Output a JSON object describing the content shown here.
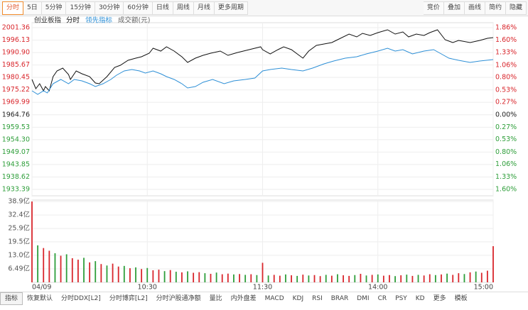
{
  "toolbar": {
    "left": [
      "分时",
      "5日",
      "5分钟",
      "15分钟",
      "30分钟",
      "60分钟",
      "日线",
      "周线",
      "月线",
      "更多周期"
    ],
    "right": [
      "竞价",
      "叠加",
      "画线",
      "简约",
      "隐藏"
    ]
  },
  "bottom_tabs": [
    "指标",
    "恢复默认",
    "分时DDX[L2]",
    "分时博弈[L2]",
    "分时沪股通净额",
    "量比",
    "内外盘差",
    "MACD",
    "KDJ",
    "RSI",
    "BRAR",
    "DMI",
    "CR",
    "PSY",
    "KD",
    "更多",
    "模板"
  ],
  "chart_data": [
    {
      "type": "line",
      "title": "创业板指",
      "xlim": [
        0,
        240
      ],
      "ylim": [
        1930.71,
        2003.45
      ],
      "y2lim": [
        -1.733,
        1.969
      ],
      "yticks": [
        2001.36,
        1996.13,
        {
          "value": 1990.9,
          "label": "1990.90"
        },
        1985.67,
        1980.45,
        1975.22,
        1969.99,
        1964.76,
        1959.53,
        {
          "value": 1954.3,
          "label": "1954.30"
        },
        1949.07,
        1943.85,
        1938.62,
        1933.39
      ],
      "y2ticks": [
        {
          "value": 1.86,
          "label": "1.86%"
        },
        {
          "value": 1.6,
          "label": "1.60%"
        },
        {
          "value": 1.33,
          "label": "1.33%"
        },
        {
          "value": 1.06,
          "label": "1.06%"
        },
        {
          "value": 0.8,
          "label": "0.80%"
        },
        {
          "value": 0.53,
          "label": "0.53%"
        },
        {
          "value": 0.27,
          "label": "0.27%"
        },
        {
          "value": 0,
          "label": "0.00%"
        },
        {
          "value": -0.27,
          "label": "0.27%"
        },
        {
          "value": -0.53,
          "label": "0.53%"
        },
        {
          "value": -0.8,
          "label": "0.80%"
        },
        {
          "value": -1.06,
          "label": "1.06%"
        },
        {
          "value": -1.33,
          "label": "1.33%"
        },
        {
          "value": -1.6,
          "label": "1.60%"
        }
      ],
      "up_color": "#d9262c",
      "down_color": "#2e9e3a",
      "grid": true,
      "series": [
        {
          "name": "分时",
          "color": "#111111",
          "x": [
            0,
            2,
            4,
            6,
            7,
            9,
            11,
            13,
            16,
            19,
            20,
            23,
            26,
            30,
            33,
            35,
            39,
            43,
            46,
            50,
            54,
            57,
            61,
            63,
            67,
            70,
            74,
            78,
            81,
            85,
            89,
            93,
            98,
            102,
            107,
            113,
            119,
            120,
            124,
            128,
            131,
            135,
            139,
            141,
            144,
            148,
            152,
            156,
            159,
            165,
            169,
            172,
            176,
            180,
            185,
            189,
            193,
            196,
            200,
            204,
            207,
            211,
            215,
            219,
            222,
            228,
            233,
            237,
            240
          ],
          "values": [
            1979.59,
            1975.72,
            1977.81,
            1974.82,
            1976.61,
            1974.82,
            1980.79,
            1983.17,
            1984.37,
            1981.68,
            1979.59,
            1983.17,
            1981.98,
            1980.79,
            1978.1,
            1977.81,
            1980.79,
            1984.66,
            1985.56,
            1987.65,
            1988.54,
            1989.14,
            1990.63,
            1992.71,
            1991.52,
            1993.31,
            1991.52,
            1989.14,
            1986.75,
            1988.54,
            1989.73,
            1990.63,
            1991.52,
            1989.73,
            1990.92,
            1992.12,
            1993.31,
            1992.12,
            1990.33,
            1992.12,
            1993.31,
            1992.12,
            1989.73,
            1988.54,
            1991.52,
            1993.91,
            1994.5,
            1995.1,
            1996.29,
            1998.68,
            1997.48,
            1998.97,
            1998.08,
            1999.27,
            2000.47,
            1998.68,
            1999.57,
            1997.48,
            1998.68,
            1998.08,
            1999.27,
            2000.47,
            1996.29,
            1995.1,
            1995.99,
            1995.1,
            1995.99,
            1996.89,
            1997.19
          ]
        },
        {
          "name": "领先指标",
          "color": "#2d8fd6",
          "x": [
            0,
            3,
            6,
            8,
            11,
            15,
            19,
            22,
            26,
            30,
            33,
            37,
            41,
            44,
            48,
            52,
            56,
            59,
            63,
            67,
            70,
            74,
            78,
            81,
            85,
            89,
            94,
            100,
            105,
            111,
            116,
            120,
            124,
            130,
            135,
            141,
            146,
            152,
            157,
            163,
            169,
            174,
            180,
            185,
            189,
            193,
            198,
            204,
            209,
            213,
            217,
            222,
            228,
            233,
            240
          ],
          "values": [
            1974.82,
            1973.33,
            1974.82,
            1973.93,
            1977.81,
            1979.59,
            1977.81,
            1979.59,
            1979,
            1977.81,
            1976.61,
            1977.81,
            1979.59,
            1981.38,
            1983.17,
            1983.77,
            1983.17,
            1982.28,
            1983.17,
            1981.98,
            1980.79,
            1979.59,
            1977.81,
            1976.02,
            1976.61,
            1978.4,
            1979.59,
            1977.81,
            1979,
            1979.59,
            1980.19,
            1983.17,
            1983.77,
            1984.37,
            1983.77,
            1983.17,
            1984.37,
            1986.15,
            1987.35,
            1988.54,
            1989.14,
            1990.33,
            1991.52,
            1992.71,
            1991.52,
            1992.12,
            1990.33,
            1991.52,
            1992.12,
            1990.33,
            1988.54,
            1987.65,
            1986.75,
            1987.35,
            1987.94
          ]
        }
      ]
    },
    {
      "type": "bar",
      "title": "成交额(元)",
      "xlim": [
        0,
        240
      ],
      "ylim": [
        0,
        39.6
      ],
      "yticks": [
        {
          "value": 38.9,
          "label": "38.9亿"
        },
        {
          "value": 32.4,
          "label": "32.4亿"
        },
        {
          "value": 25.9,
          "label": "25.9亿"
        },
        {
          "value": 19.5,
          "label": "19.5亿"
        },
        {
          "value": 13.0,
          "label": "13.0亿"
        },
        {
          "value": 6.49,
          "label": "6.49亿"
        }
      ],
      "xticks": [
        {
          "value": 0,
          "label": "04/09"
        },
        {
          "value": 60,
          "label": "10:30"
        },
        {
          "value": 120,
          "label": "11:30"
        },
        {
          "value": 180,
          "label": "14:00"
        },
        {
          "value": 240,
          "label": "15:00"
        }
      ],
      "up_color": "#d9262c",
      "down_color": "#2e9e3a",
      "x": [
        0,
        3,
        6,
        9,
        12,
        15,
        18,
        21,
        24,
        27,
        30,
        33,
        36,
        39,
        42,
        45,
        48,
        51,
        54,
        57,
        60,
        63,
        66,
        69,
        72,
        75,
        78,
        81,
        84,
        87,
        90,
        93,
        96,
        99,
        102,
        105,
        108,
        111,
        114,
        117,
        120,
        123,
        126,
        129,
        132,
        135,
        138,
        141,
        144,
        147,
        150,
        153,
        156,
        159,
        162,
        165,
        168,
        171,
        174,
        177,
        180,
        183,
        186,
        189,
        192,
        195,
        198,
        201,
        204,
        207,
        210,
        213,
        216,
        219,
        222,
        225,
        228,
        231,
        234,
        237,
        240
      ],
      "values": [
        38.9,
        17.8,
        16.5,
        15.2,
        14.0,
        12.8,
        13.5,
        11.6,
        10.9,
        11.8,
        9.6,
        10.2,
        8.8,
        8.1,
        9.0,
        7.6,
        7.9,
        6.8,
        7.2,
        6.4,
        6.9,
        5.8,
        6.1,
        5.4,
        5.9,
        5.1,
        4.8,
        5.3,
        4.6,
        4.9,
        4.4,
        4.1,
        4.7,
        3.9,
        4.2,
        3.8,
        4.0,
        3.6,
        3.9,
        3.5,
        9.4,
        3.3,
        3.6,
        3.2,
        3.8,
        3.4,
        3.1,
        3.7,
        3.3,
        3.5,
        3.0,
        3.6,
        3.2,
        3.9,
        3.4,
        3.1,
        3.5,
        4.1,
        3.3,
        3.6,
        3.8,
        3.2,
        3.5,
        3.0,
        3.4,
        3.7,
        3.1,
        3.6,
        3.3,
        3.9,
        3.5,
        3.8,
        4.2,
        3.6,
        4.4,
        4.0,
        4.8,
        5.2,
        4.6,
        5.6,
        17.4
      ],
      "up": [
        true,
        false,
        true,
        true,
        false,
        true,
        false,
        true,
        true,
        false,
        true,
        false,
        true,
        false,
        true,
        true,
        false,
        true,
        false,
        true,
        false,
        true,
        true,
        false,
        true,
        false,
        true,
        false,
        true,
        true,
        false,
        true,
        false,
        true,
        true,
        false,
        true,
        false,
        true,
        false,
        true,
        false,
        true,
        true,
        false,
        true,
        false,
        true,
        false,
        true,
        true,
        false,
        true,
        false,
        true,
        true,
        false,
        true,
        false,
        true,
        false,
        true,
        true,
        false,
        true,
        false,
        true,
        false,
        true,
        true,
        false,
        true,
        false,
        true,
        true,
        false,
        true,
        false,
        true,
        true,
        true
      ]
    }
  ]
}
